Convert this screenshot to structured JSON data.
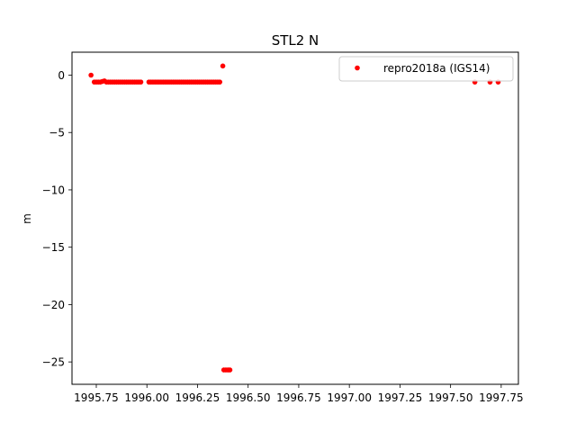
{
  "chart_data": {
    "type": "scatter",
    "title": "STL2 N",
    "xlabel": "",
    "ylabel": "m",
    "xlim": [
      1995.63,
      1997.835
    ],
    "ylim": [
      -26.95,
      2.0
    ],
    "x_ticks": [
      1995.75,
      1996.0,
      1996.25,
      1996.5,
      1996.75,
      1997.0,
      1997.25,
      1997.5,
      1997.75
    ],
    "x_tick_labels": [
      "1995.75",
      "1996.00",
      "1996.25",
      "1996.50",
      "1996.75",
      "1997.00",
      "1997.25",
      "1997.50",
      "1997.75"
    ],
    "y_ticks": [
      0,
      -5,
      -10,
      -15,
      -20,
      -25
    ],
    "y_tick_labels": [
      "0",
      "−5",
      "−10",
      "−15",
      "−20",
      "−25"
    ],
    "grid": false,
    "legend_position": "top-right",
    "marker_color": "#ff0000",
    "series": [
      {
        "name": "repro2018a (IGS14)",
        "color": "#ff0000",
        "points": [
          {
            "x": 1995.724,
            "y": 0.0
          },
          {
            "x": 1995.74,
            "y": -0.6
          },
          {
            "x": 1995.75,
            "y": -0.6
          },
          {
            "x": 1995.76,
            "y": -0.6
          },
          {
            "x": 1995.77,
            "y": -0.6
          },
          {
            "x": 1995.78,
            "y": -0.55
          },
          {
            "x": 1995.79,
            "y": -0.5
          },
          {
            "x": 1995.8,
            "y": -0.6
          },
          {
            "x": 1995.81,
            "y": -0.6
          },
          {
            "x": 1995.82,
            "y": -0.6
          },
          {
            "x": 1995.83,
            "y": -0.6
          },
          {
            "x": 1995.84,
            "y": -0.6
          },
          {
            "x": 1995.85,
            "y": -0.6
          },
          {
            "x": 1995.86,
            "y": -0.6
          },
          {
            "x": 1995.87,
            "y": -0.6
          },
          {
            "x": 1995.88,
            "y": -0.6
          },
          {
            "x": 1995.89,
            "y": -0.6
          },
          {
            "x": 1995.9,
            "y": -0.6
          },
          {
            "x": 1995.91,
            "y": -0.6
          },
          {
            "x": 1995.92,
            "y": -0.6
          },
          {
            "x": 1995.93,
            "y": -0.6
          },
          {
            "x": 1995.94,
            "y": -0.6
          },
          {
            "x": 1995.95,
            "y": -0.6
          },
          {
            "x": 1995.96,
            "y": -0.6
          },
          {
            "x": 1995.97,
            "y": -0.6
          },
          {
            "x": 1996.01,
            "y": -0.6
          },
          {
            "x": 1996.02,
            "y": -0.6
          },
          {
            "x": 1996.03,
            "y": -0.6
          },
          {
            "x": 1996.04,
            "y": -0.6
          },
          {
            "x": 1996.05,
            "y": -0.6
          },
          {
            "x": 1996.06,
            "y": -0.6
          },
          {
            "x": 1996.07,
            "y": -0.6
          },
          {
            "x": 1996.08,
            "y": -0.6
          },
          {
            "x": 1996.09,
            "y": -0.6
          },
          {
            "x": 1996.1,
            "y": -0.6
          },
          {
            "x": 1996.11,
            "y": -0.6
          },
          {
            "x": 1996.12,
            "y": -0.6
          },
          {
            "x": 1996.13,
            "y": -0.6
          },
          {
            "x": 1996.14,
            "y": -0.6
          },
          {
            "x": 1996.15,
            "y": -0.6
          },
          {
            "x": 1996.16,
            "y": -0.6
          },
          {
            "x": 1996.17,
            "y": -0.6
          },
          {
            "x": 1996.18,
            "y": -0.6
          },
          {
            "x": 1996.19,
            "y": -0.6
          },
          {
            "x": 1996.2,
            "y": -0.6
          },
          {
            "x": 1996.21,
            "y": -0.6
          },
          {
            "x": 1996.22,
            "y": -0.6
          },
          {
            "x": 1996.23,
            "y": -0.6
          },
          {
            "x": 1996.24,
            "y": -0.6
          },
          {
            "x": 1996.25,
            "y": -0.6
          },
          {
            "x": 1996.26,
            "y": -0.6
          },
          {
            "x": 1996.27,
            "y": -0.6
          },
          {
            "x": 1996.28,
            "y": -0.6
          },
          {
            "x": 1996.29,
            "y": -0.6
          },
          {
            "x": 1996.3,
            "y": -0.6
          },
          {
            "x": 1996.31,
            "y": -0.6
          },
          {
            "x": 1996.32,
            "y": -0.6
          },
          {
            "x": 1996.33,
            "y": -0.6
          },
          {
            "x": 1996.34,
            "y": -0.6
          },
          {
            "x": 1996.35,
            "y": -0.6
          },
          {
            "x": 1996.36,
            "y": -0.6
          },
          {
            "x": 1996.375,
            "y": 0.8
          },
          {
            "x": 1996.38,
            "y": -25.7
          },
          {
            "x": 1996.39,
            "y": -25.7
          },
          {
            "x": 1996.4,
            "y": -25.7
          },
          {
            "x": 1996.41,
            "y": -25.7
          },
          {
            "x": 1997.62,
            "y": -0.6
          },
          {
            "x": 1997.695,
            "y": -0.6
          },
          {
            "x": 1997.735,
            "y": -0.6
          }
        ]
      }
    ]
  }
}
